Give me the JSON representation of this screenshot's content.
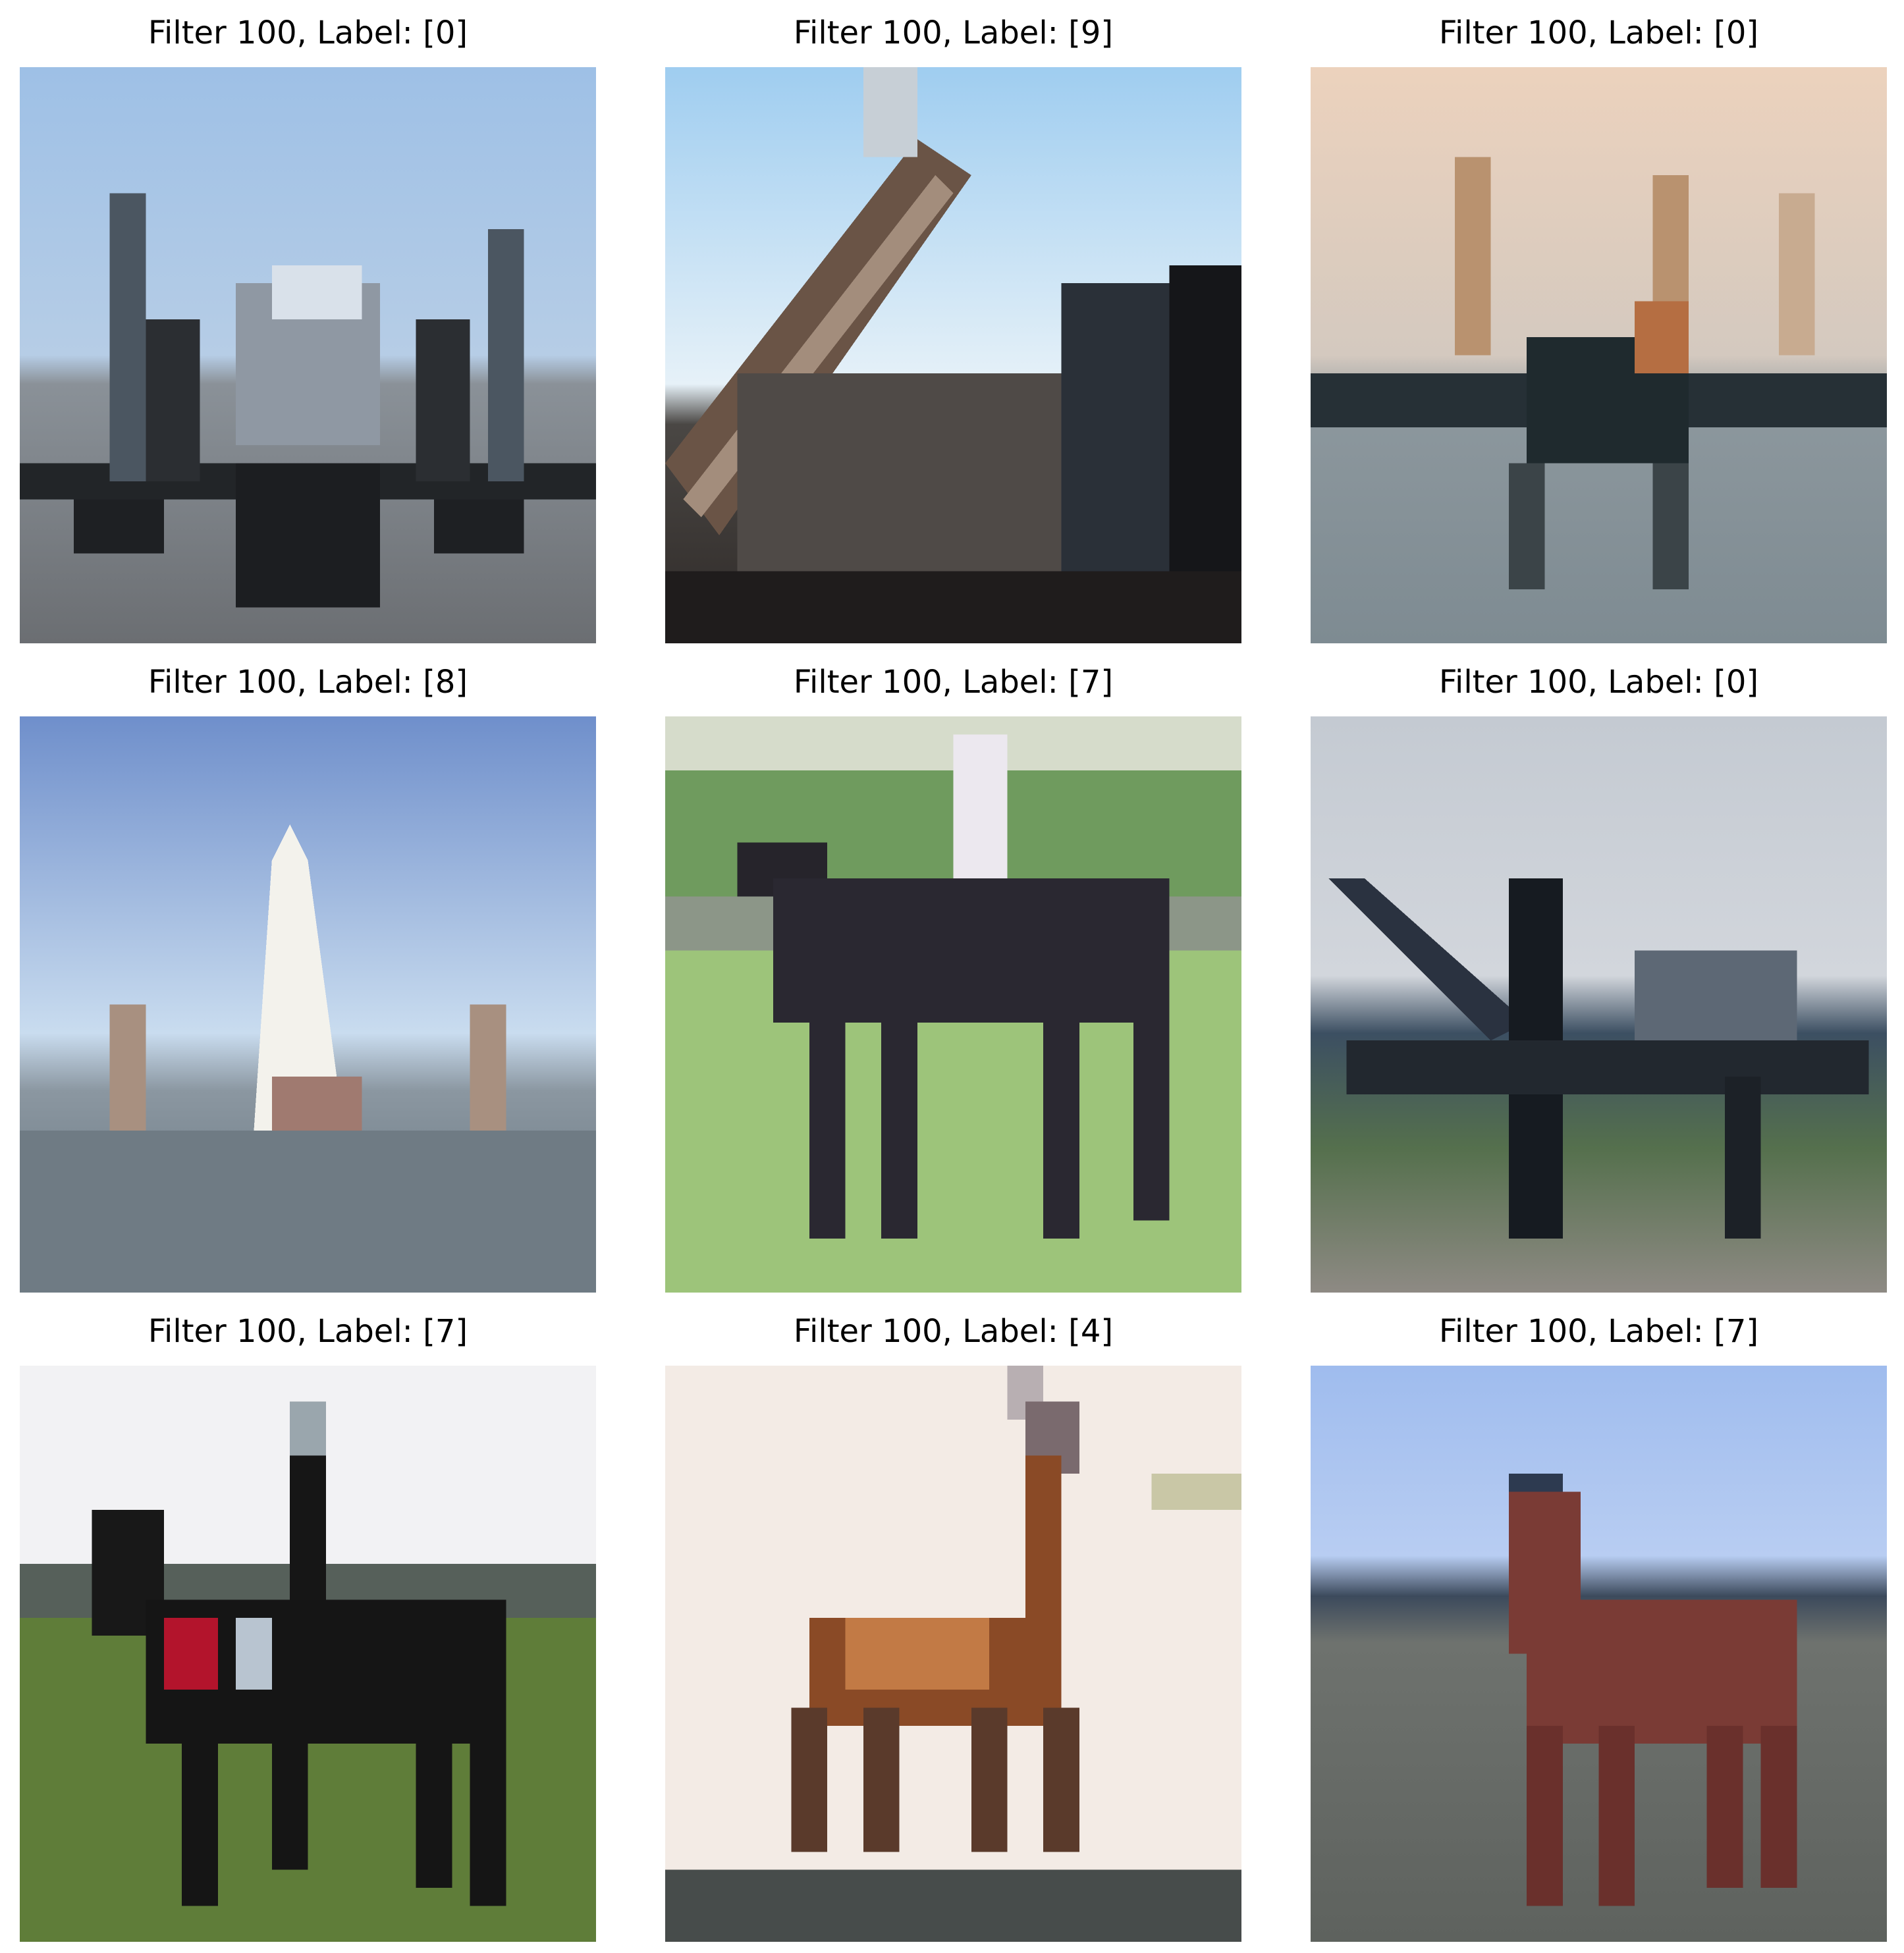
{
  "panels": [
    {
      "title": "Filter 100, Label: [0]",
      "subject": "propeller-airplane-front",
      "colors": {
        "sky": "#a9c6e8",
        "ground": "#6f7277",
        "body": "#2a2d31",
        "accent": "#c9d3dd"
      }
    },
    {
      "title": "Filter 100, Label: [9]",
      "subject": "truck-crane-arm",
      "colors": {
        "sky": "#b9d8f0",
        "ground": "#3a3532",
        "body": "#5b4a3f",
        "accent": "#2b2f36"
      }
    },
    {
      "title": "Filter 100, Label: [0]",
      "subject": "jet-airplane-front",
      "colors": {
        "sky": "#e9d0bb",
        "ground": "#7d8b94",
        "body": "#232c30",
        "accent": "#b58a63"
      }
    },
    {
      "title": "Filter 100, Label: [8]",
      "subject": "space-shuttle-ship",
      "colors": {
        "sky": "#8fb0dc",
        "ground": "#6b7a86",
        "body": "#f1f0ea",
        "accent": "#a08778"
      }
    },
    {
      "title": "Filter 100, Label: [7]",
      "subject": "horse-with-rider-trees",
      "colors": {
        "sky": "#e6e6ea",
        "ground": "#8fb56a",
        "body": "#2c2a33",
        "accent": "#4f8a4a"
      }
    },
    {
      "title": "Filter 100, Label: [0]",
      "subject": "fighter-jet-side",
      "colors": {
        "sky": "#c8ced6",
        "ground": "#59704f",
        "body": "#1d232a",
        "accent": "#3d5166"
      }
    },
    {
      "title": "Filter 100, Label: [7]",
      "subject": "horse-with-rider-field",
      "colors": {
        "sky": "#f3f3f4",
        "ground": "#5d7a36",
        "body": "#161616",
        "accent": "#b3142c"
      }
    },
    {
      "title": "Filter 100, Label: [4]",
      "subject": "deer-standing",
      "colors": {
        "sky": "#f4ebe6",
        "ground": "#4b5150",
        "body": "#8a4a26",
        "accent": "#c27a45"
      }
    },
    {
      "title": "Filter 100, Label: [7]",
      "subject": "brown-horse-standing",
      "colors": {
        "sky": "#a6c0ee",
        "ground": "#6a6f6a",
        "body": "#7a3b35",
        "accent": "#3b4a5c"
      }
    }
  ]
}
